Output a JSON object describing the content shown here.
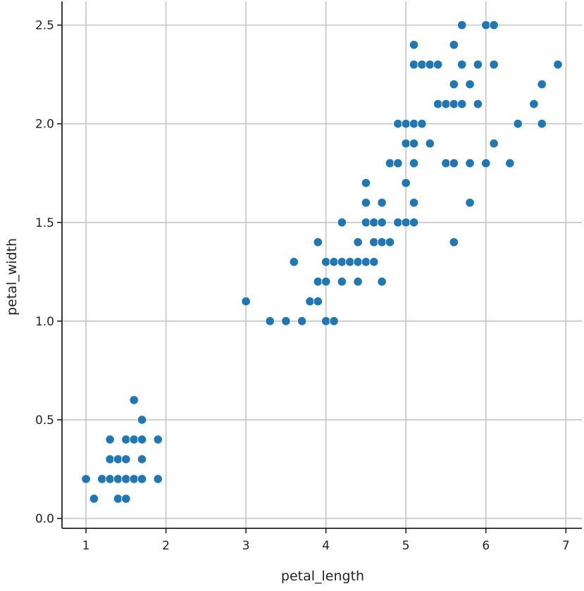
{
  "chart_data": {
    "type": "scatter",
    "title": "",
    "xlabel": "petal_length",
    "ylabel": "petal_width",
    "xlim": [
      0.7,
      7.2
    ],
    "ylim": [
      -0.05,
      2.62
    ],
    "xticks": [
      1,
      2,
      3,
      4,
      5,
      6,
      7
    ],
    "xtick_labels": [
      "1",
      "2",
      "3",
      "4",
      "5",
      "6",
      "7"
    ],
    "yticks": [
      0.0,
      0.5,
      1.0,
      1.5,
      2.0,
      2.5
    ],
    "ytick_labels": [
      "0.0",
      "0.5",
      "1.0",
      "1.5",
      "2.0",
      "2.5"
    ],
    "grid": true,
    "marker_color": "#1f77b4",
    "points": [
      [
        1.0,
        0.2
      ],
      [
        1.1,
        0.1
      ],
      [
        1.2,
        0.2
      ],
      [
        1.3,
        0.2
      ],
      [
        1.3,
        0.3
      ],
      [
        1.3,
        0.4
      ],
      [
        1.4,
        0.1
      ],
      [
        1.4,
        0.2
      ],
      [
        1.4,
        0.3
      ],
      [
        1.5,
        0.1
      ],
      [
        1.5,
        0.2
      ],
      [
        1.5,
        0.3
      ],
      [
        1.5,
        0.4
      ],
      [
        1.6,
        0.2
      ],
      [
        1.6,
        0.4
      ],
      [
        1.6,
        0.6
      ],
      [
        1.7,
        0.2
      ],
      [
        1.7,
        0.3
      ],
      [
        1.7,
        0.4
      ],
      [
        1.7,
        0.5
      ],
      [
        1.9,
        0.2
      ],
      [
        1.9,
        0.4
      ],
      [
        3.0,
        1.1
      ],
      [
        3.3,
        1.0
      ],
      [
        3.5,
        1.0
      ],
      [
        3.6,
        1.3
      ],
      [
        3.7,
        1.0
      ],
      [
        3.8,
        1.1
      ],
      [
        3.9,
        1.1
      ],
      [
        3.9,
        1.2
      ],
      [
        3.9,
        1.4
      ],
      [
        4.0,
        1.0
      ],
      [
        4.0,
        1.2
      ],
      [
        4.0,
        1.3
      ],
      [
        4.1,
        1.0
      ],
      [
        4.1,
        1.3
      ],
      [
        4.2,
        1.2
      ],
      [
        4.2,
        1.3
      ],
      [
        4.2,
        1.5
      ],
      [
        4.3,
        1.3
      ],
      [
        4.4,
        1.2
      ],
      [
        4.4,
        1.3
      ],
      [
        4.4,
        1.4
      ],
      [
        4.5,
        1.3
      ],
      [
        4.5,
        1.5
      ],
      [
        4.5,
        1.6
      ],
      [
        4.5,
        1.7
      ],
      [
        4.6,
        1.3
      ],
      [
        4.6,
        1.4
      ],
      [
        4.6,
        1.5
      ],
      [
        4.7,
        1.2
      ],
      [
        4.7,
        1.4
      ],
      [
        4.7,
        1.5
      ],
      [
        4.7,
        1.6
      ],
      [
        4.8,
        1.4
      ],
      [
        4.8,
        1.8
      ],
      [
        4.9,
        1.5
      ],
      [
        4.9,
        1.8
      ],
      [
        4.9,
        2.0
      ],
      [
        5.0,
        1.5
      ],
      [
        5.0,
        1.7
      ],
      [
        5.0,
        1.9
      ],
      [
        5.0,
        2.0
      ],
      [
        5.1,
        1.5
      ],
      [
        5.1,
        1.6
      ],
      [
        5.1,
        1.8
      ],
      [
        5.1,
        1.9
      ],
      [
        5.1,
        2.0
      ],
      [
        5.1,
        2.3
      ],
      [
        5.1,
        2.4
      ],
      [
        5.2,
        2.0
      ],
      [
        5.2,
        2.3
      ],
      [
        5.3,
        1.9
      ],
      [
        5.3,
        2.3
      ],
      [
        5.4,
        2.1
      ],
      [
        5.4,
        2.3
      ],
      [
        5.5,
        1.8
      ],
      [
        5.5,
        2.1
      ],
      [
        5.6,
        1.4
      ],
      [
        5.6,
        1.8
      ],
      [
        5.6,
        2.1
      ],
      [
        5.6,
        2.2
      ],
      [
        5.6,
        2.4
      ],
      [
        5.7,
        2.1
      ],
      [
        5.7,
        2.3
      ],
      [
        5.7,
        2.5
      ],
      [
        5.8,
        1.6
      ],
      [
        5.8,
        1.8
      ],
      [
        5.8,
        2.2
      ],
      [
        5.9,
        2.1
      ],
      [
        5.9,
        2.3
      ],
      [
        6.0,
        1.8
      ],
      [
        6.0,
        2.5
      ],
      [
        6.1,
        1.9
      ],
      [
        6.1,
        2.3
      ],
      [
        6.1,
        2.5
      ],
      [
        6.3,
        1.8
      ],
      [
        6.4,
        2.0
      ],
      [
        6.6,
        2.1
      ],
      [
        6.7,
        2.0
      ],
      [
        6.7,
        2.2
      ],
      [
        6.9,
        2.3
      ]
    ]
  }
}
